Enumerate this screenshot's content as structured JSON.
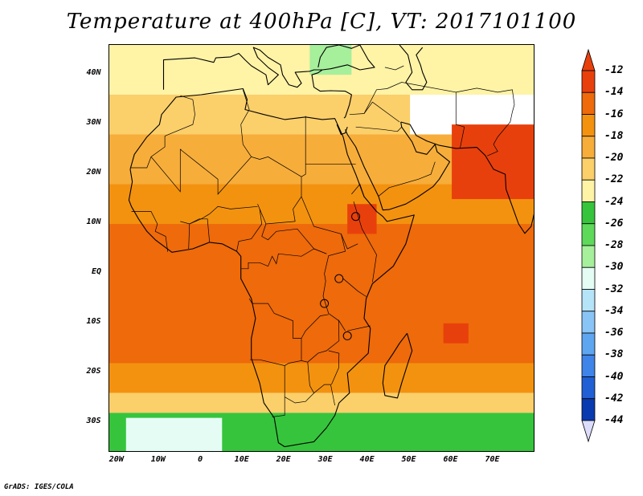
{
  "title": "Temperature at 400hPa [C], VT: 2017101100",
  "credit": "GrADS: IGES/COLA",
  "map": {
    "lat_range": [
      -36,
      46
    ],
    "lon_range": [
      -22,
      80
    ],
    "lat_ticks": [
      {
        "value": 40,
        "label": "40N"
      },
      {
        "value": 30,
        "label": "30N"
      },
      {
        "value": 20,
        "label": "20N"
      },
      {
        "value": 10,
        "label": "10N"
      },
      {
        "value": 0,
        "label": "EQ"
      },
      {
        "value": -10,
        "label": "10S"
      },
      {
        "value": -20,
        "label": "20S"
      },
      {
        "value": -30,
        "label": "30S"
      }
    ],
    "lon_ticks": [
      {
        "value": -20,
        "label": "20W"
      },
      {
        "value": -10,
        "label": "10W"
      },
      {
        "value": 0,
        "label": "0"
      },
      {
        "value": 10,
        "label": "10E"
      },
      {
        "value": 20,
        "label": "20E"
      },
      {
        "value": 30,
        "label": "30E"
      },
      {
        "value": 40,
        "label": "40E"
      },
      {
        "value": 50,
        "label": "50E"
      },
      {
        "value": 60,
        "label": "60E"
      },
      {
        "value": 70,
        "label": "70E"
      }
    ]
  },
  "colorbar": {
    "labels": [
      "-12",
      "-14",
      "-16",
      "-18",
      "-20",
      "-22",
      "-24",
      "-26",
      "-28",
      "-30",
      "-32",
      "-34",
      "-36",
      "-38",
      "-40",
      "-42",
      "-44"
    ],
    "colors": [
      "#e8400c",
      "#ee6a0a",
      "#f3920f",
      "#f7ad3a",
      "#fbcf6a",
      "#fff3a6",
      "#36c43c",
      "#5ed95a",
      "#a6ef9b",
      "#e4fcf4",
      "#b5e3f8",
      "#89c4f6",
      "#5ea6f0",
      "#3f84e8",
      "#2060d4",
      "#0a3ab0",
      "#071673"
    ],
    "over_color": "#e8400c",
    "under_color": "#dcdcfb"
  },
  "chart_data": {
    "type": "heatmap",
    "title": "Temperature at 400hPa [C], VT: 2017101100",
    "units": "C",
    "levels": [
      -12,
      -14,
      -16,
      -18,
      -20,
      -22,
      -24,
      -26,
      -28,
      -30,
      -32,
      -34,
      -36,
      -38,
      -40,
      -42,
      -44
    ],
    "zones": [
      {
        "lat": [
          36,
          46
        ],
        "lon": [
          -22,
          80
        ],
        "value": -24
      },
      {
        "lat": [
          28,
          36
        ],
        "lon": [
          -22,
          50
        ],
        "value": -22
      },
      {
        "lat": [
          18,
          28
        ],
        "lon": [
          -22,
          80
        ],
        "value": -19
      },
      {
        "lat": [
          10,
          18
        ],
        "lon": [
          -22,
          80
        ],
        "value": -17
      },
      {
        "lat": [
          -18,
          10
        ],
        "lon": [
          -22,
          80
        ],
        "value": -15
      },
      {
        "lat": [
          -24,
          -18
        ],
        "lon": [
          -22,
          80
        ],
        "value": -17
      },
      {
        "lat": [
          -28,
          -24
        ],
        "lon": [
          -22,
          80
        ],
        "value": -21
      },
      {
        "lat": [
          -36,
          -28
        ],
        "lon": [
          -22,
          80
        ],
        "value": -25
      },
      {
        "lat": [
          -36,
          -29
        ],
        "lon": [
          -18,
          5
        ],
        "value": -31
      },
      {
        "lat": [
          40,
          46
        ],
        "lon": [
          26,
          36
        ],
        "value": -30
      },
      {
        "lat": [
          15,
          30
        ],
        "lon": [
          60,
          80
        ],
        "value": -13
      },
      {
        "lat": [
          8,
          14
        ],
        "lon": [
          35,
          42
        ],
        "value": -13
      },
      {
        "lat": [
          -14,
          -10
        ],
        "lon": [
          58,
          64
        ],
        "value": -13
      }
    ]
  }
}
